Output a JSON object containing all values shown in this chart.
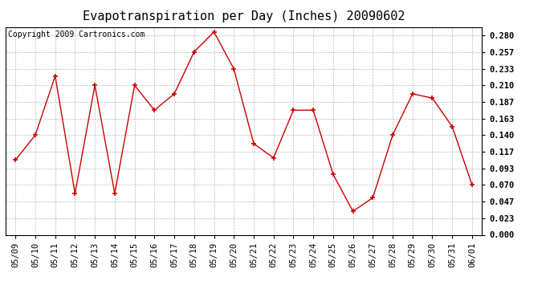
{
  "title": "Evapotranspiration per Day (Inches) 20090602",
  "copyright": "Copyright 2009 Cartronics.com",
  "dates": [
    "05/09",
    "05/10",
    "05/11",
    "05/12",
    "05/13",
    "05/14",
    "05/15",
    "05/16",
    "05/17",
    "05/18",
    "05/19",
    "05/20",
    "05/21",
    "05/22",
    "05/23",
    "05/24",
    "05/25",
    "05/26",
    "05/27",
    "05/28",
    "05/29",
    "05/30",
    "05/31",
    "06/01"
  ],
  "values": [
    0.105,
    0.14,
    0.223,
    0.058,
    0.21,
    0.058,
    0.21,
    0.175,
    0.198,
    0.257,
    0.285,
    0.233,
    0.128,
    0.108,
    0.175,
    0.175,
    0.085,
    0.033,
    0.052,
    0.14,
    0.198,
    0.192,
    0.152,
    0.07
  ],
  "line_color": "#cc0000",
  "marker": "+",
  "marker_color": "#cc0000",
  "bg_color": "#ffffff",
  "plot_bg_color": "#ffffff",
  "grid_color": "#bbbbbb",
  "yticks": [
    0.0,
    0.023,
    0.047,
    0.07,
    0.093,
    0.117,
    0.14,
    0.163,
    0.187,
    0.21,
    0.233,
    0.257,
    0.28
  ],
  "ylim": [
    0.0,
    0.2917
  ],
  "title_fontsize": 11,
  "copyright_fontsize": 7,
  "tick_fontsize": 7.5
}
